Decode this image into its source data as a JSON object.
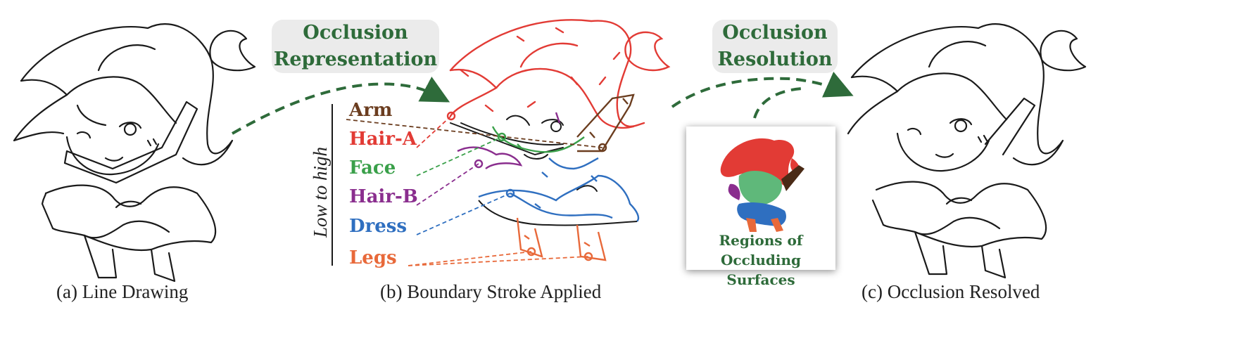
{
  "bubbles": {
    "representation": [
      "Occlusion",
      "Representation"
    ],
    "resolution": [
      "Occlusion",
      "Resolution"
    ]
  },
  "captions": {
    "a": "(a) Line Drawing",
    "b": "(b) Boundary Stroke Applied",
    "c": "(c) Occlusion Resolved"
  },
  "axis_label": "Low to high",
  "layers": [
    {
      "label": "Arm",
      "color": "#6b3d1f"
    },
    {
      "label": "Hair-A",
      "color": "#e23b35"
    },
    {
      "label": "Face",
      "color": "#3aa04a"
    },
    {
      "label": "Hair-B",
      "color": "#8a2e8e"
    },
    {
      "label": "Dress",
      "color": "#2f6fc0"
    },
    {
      "label": "Legs",
      "color": "#e8693a"
    }
  ],
  "inset_caption": [
    "Regions of",
    "Occluding Surfaces"
  ],
  "colors": {
    "accent_green": "#2e6b3a",
    "bubble_bg": "#ebebeb",
    "line": "#1a1a1a"
  }
}
